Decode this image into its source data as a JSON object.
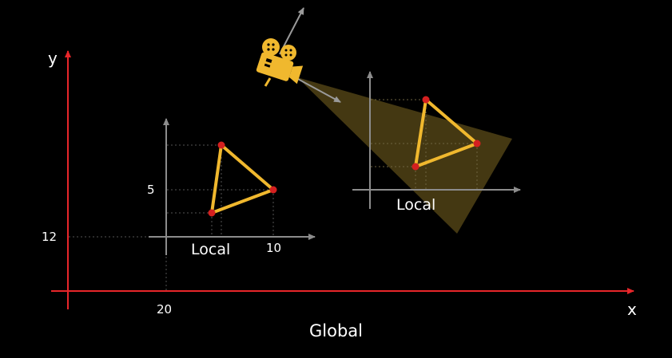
{
  "global": {
    "label": "Global",
    "x_axis_label": "x",
    "y_axis_label": "y",
    "x_tick": "20",
    "y_tick": "12",
    "axis_color": "#e8262a"
  },
  "local_left": {
    "label": "Local",
    "x_tick": "10",
    "y_tick": "5",
    "axis_color": "#8c8c8c"
  },
  "local_right": {
    "label": "Local",
    "axis_color": "#8c8c8c"
  },
  "triangle": {
    "edge_color": "#f0b82e",
    "vertex_color": "#d42020"
  },
  "camera": {
    "icon": "movie-camera-icon",
    "color": "#f0b82e",
    "frustum_color": "#4a3d14"
  }
}
